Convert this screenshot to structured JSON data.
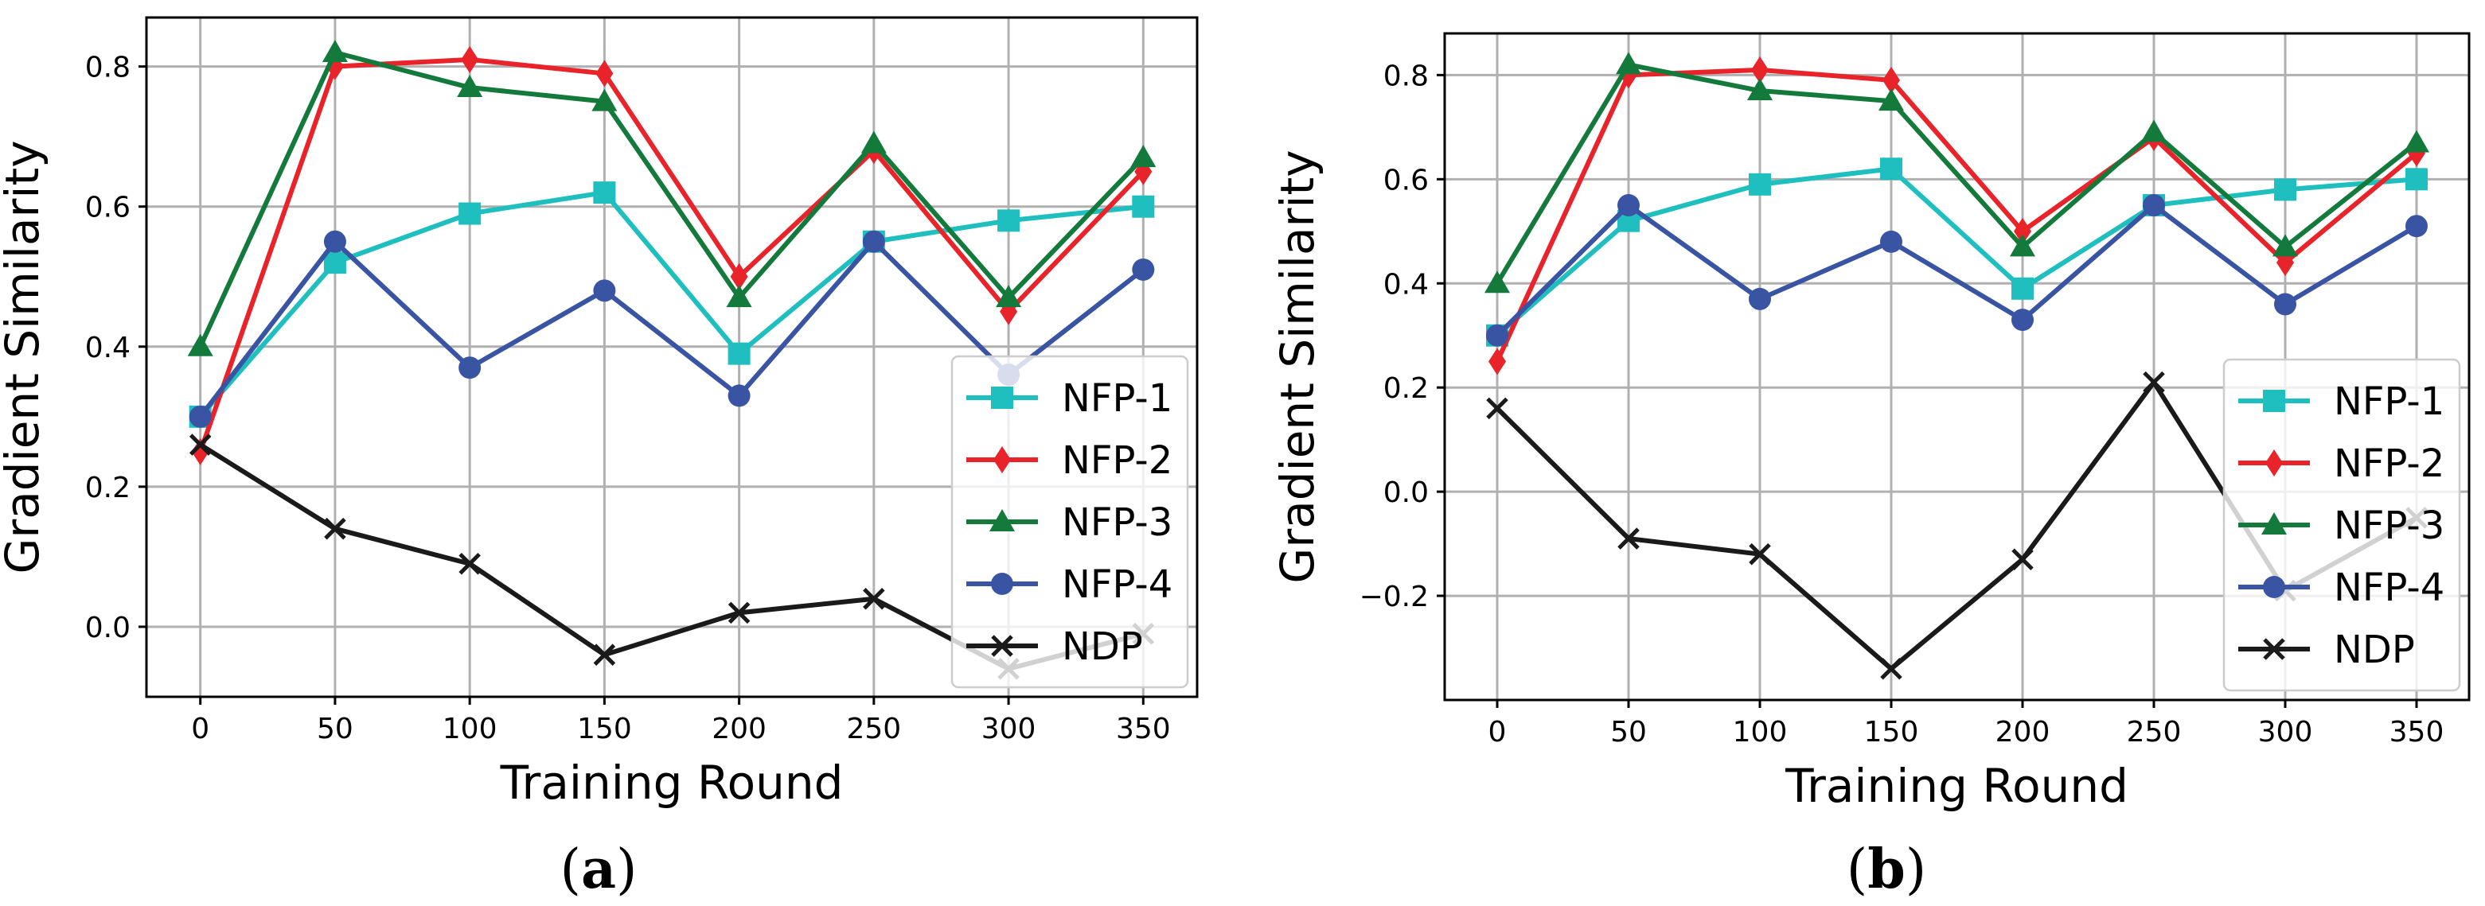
{
  "chart_data": [
    {
      "type": "line",
      "panel_label": "a",
      "title": "",
      "xlabel": "Training Round",
      "ylabel": "Gradient Similarity",
      "xlim": [
        -20,
        370
      ],
      "ylim": [
        -0.1,
        0.87
      ],
      "xticks": [
        0,
        50,
        100,
        150,
        200,
        250,
        300,
        350
      ],
      "yticks": [
        0.0,
        0.2,
        0.4,
        0.6,
        0.8
      ],
      "ytick_labels": [
        "0.0",
        "0.2",
        "0.4",
        "0.6",
        "0.8"
      ],
      "grid": true,
      "legend_position": "lower-right",
      "x": [
        0,
        50,
        100,
        150,
        200,
        250,
        300,
        350
      ],
      "series": [
        {
          "name": "NFP-1",
          "color": "#1fbfbf",
          "marker": "square",
          "values": [
            0.3,
            0.52,
            0.59,
            0.62,
            0.39,
            0.55,
            0.58,
            0.6
          ]
        },
        {
          "name": "NFP-2",
          "color": "#e8232a",
          "marker": "diamond",
          "values": [
            0.25,
            0.8,
            0.81,
            0.79,
            0.5,
            0.68,
            0.45,
            0.65
          ]
        },
        {
          "name": "NFP-3",
          "color": "#137a3c",
          "marker": "triangle",
          "values": [
            0.4,
            0.82,
            0.77,
            0.75,
            0.47,
            0.69,
            0.47,
            0.67
          ]
        },
        {
          "name": "NFP-4",
          "color": "#3a54a4",
          "marker": "circle",
          "values": [
            0.3,
            0.55,
            0.37,
            0.48,
            0.33,
            0.55,
            0.36,
            0.51
          ]
        },
        {
          "name": "NDP",
          "color": "#1a1a1a",
          "marker": "x",
          "values": [
            0.26,
            0.14,
            0.09,
            -0.04,
            0.02,
            0.04,
            -0.06,
            -0.01
          ]
        }
      ]
    },
    {
      "type": "line",
      "panel_label": "b",
      "title": "",
      "xlabel": "Training Round",
      "ylabel": "Gradient Similarity",
      "xlim": [
        -20,
        370
      ],
      "ylim": [
        -0.4,
        0.88
      ],
      "xticks": [
        0,
        50,
        100,
        150,
        200,
        250,
        300,
        350
      ],
      "yticks": [
        -0.2,
        0.0,
        0.2,
        0.4,
        0.6,
        0.8
      ],
      "ytick_labels": [
        "−0.2",
        "0.0",
        "0.2",
        "0.4",
        "0.6",
        "0.8"
      ],
      "grid": true,
      "legend_position": "lower-right",
      "x": [
        0,
        50,
        100,
        150,
        200,
        250,
        300,
        350
      ],
      "series": [
        {
          "name": "NFP-1",
          "color": "#1fbfbf",
          "marker": "square",
          "values": [
            0.3,
            0.52,
            0.59,
            0.62,
            0.39,
            0.55,
            0.58,
            0.6
          ]
        },
        {
          "name": "NFP-2",
          "color": "#e8232a",
          "marker": "diamond",
          "values": [
            0.25,
            0.8,
            0.81,
            0.79,
            0.5,
            0.68,
            0.44,
            0.65
          ]
        },
        {
          "name": "NFP-3",
          "color": "#137a3c",
          "marker": "triangle",
          "values": [
            0.4,
            0.82,
            0.77,
            0.75,
            0.47,
            0.69,
            0.47,
            0.67
          ]
        },
        {
          "name": "NFP-4",
          "color": "#3a54a4",
          "marker": "circle",
          "values": [
            0.3,
            0.55,
            0.37,
            0.48,
            0.33,
            0.55,
            0.36,
            0.51
          ]
        },
        {
          "name": "NDP",
          "color": "#1a1a1a",
          "marker": "x",
          "values": [
            0.16,
            -0.09,
            -0.12,
            -0.34,
            -0.13,
            0.21,
            -0.19,
            -0.05
          ]
        }
      ]
    }
  ]
}
